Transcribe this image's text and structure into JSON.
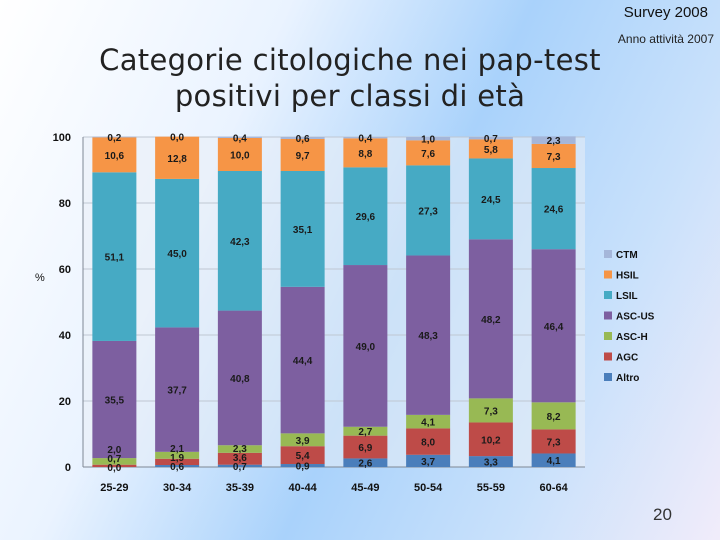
{
  "header": {
    "survey": "Survey 2008",
    "subtitle": "Anno attività 2007",
    "title_line1": "Categorie citologiche nei pap-test",
    "title_line2": "positivi per classi di età"
  },
  "page_number": "20",
  "chart_data": {
    "type": "bar",
    "stacked": true,
    "ylabel": "%",
    "ylim": [
      0,
      100
    ],
    "yticks": [
      0,
      20,
      40,
      60,
      80,
      100
    ],
    "legend_position": "right",
    "categories": [
      "25-29",
      "30-34",
      "35-39",
      "40-44",
      "45-49",
      "50-54",
      "55-59",
      "60-64"
    ],
    "series": [
      {
        "name": "Altro",
        "color": "#4a7ebb",
        "values": [
          0.0,
          0.6,
          0.7,
          0.9,
          2.6,
          3.7,
          3.3,
          4.1
        ],
        "labels": [
          "0,0",
          "0,6",
          "0,7",
          "0,9",
          "2,6",
          "3,7",
          "3,3",
          "4,1"
        ]
      },
      {
        "name": "AGC",
        "color": "#be4b48",
        "values": [
          0.7,
          1.9,
          3.6,
          5.4,
          6.9,
          8.0,
          10.2,
          7.3
        ],
        "labels": [
          "0,7",
          "1,9",
          "3,6",
          "5,4",
          "6,9",
          "8,0",
          "10,2",
          "7,3"
        ]
      },
      {
        "name": "ASC-H",
        "color": "#98b954",
        "values": [
          2.0,
          2.1,
          2.3,
          3.9,
          2.7,
          4.1,
          7.3,
          8.2
        ],
        "labels": [
          "2,0",
          "2,1",
          "2,3",
          "3,9",
          "2,7",
          "4,1",
          "7,3",
          "8,2"
        ]
      },
      {
        "name": "ASC-US",
        "color": "#7d5fa0",
        "values": [
          35.5,
          37.7,
          40.8,
          44.4,
          49.0,
          48.3,
          48.2,
          46.4
        ],
        "labels": [
          "35,5",
          "37,7",
          "40,8",
          "44,4",
          "49,0",
          "48,3",
          "48,2",
          "46,4"
        ]
      },
      {
        "name": "LSIL",
        "color": "#46aac4",
        "values": [
          51.1,
          45.0,
          42.3,
          35.1,
          29.6,
          27.3,
          24.5,
          24.6
        ],
        "labels": [
          "51,1",
          "45,0",
          "42,3",
          "35,1",
          "29,6",
          "27,3",
          "24,5",
          "24,6"
        ]
      },
      {
        "name": "HSIL",
        "color": "#f69546",
        "values": [
          10.6,
          12.8,
          10.0,
          9.7,
          8.8,
          7.6,
          5.8,
          7.3
        ],
        "labels": [
          "10,6",
          "12,8",
          "10,0",
          "9,7",
          "8,8",
          "7,6",
          "5,8",
          "7,3"
        ]
      },
      {
        "name": "CTM",
        "color": "#a5b6d9",
        "values": [
          0.2,
          0.0,
          0.4,
          0.6,
          0.4,
          1.0,
          0.7,
          2.3
        ],
        "labels": [
          "0,2",
          "0,0",
          "0,4",
          "0,6",
          "0,4",
          "1,0",
          "0,7",
          "2,3"
        ]
      }
    ],
    "legend_order": [
      "CTM",
      "HSIL",
      "LSIL",
      "ASC-US",
      "ASC-H",
      "AGC",
      "Altro"
    ]
  }
}
